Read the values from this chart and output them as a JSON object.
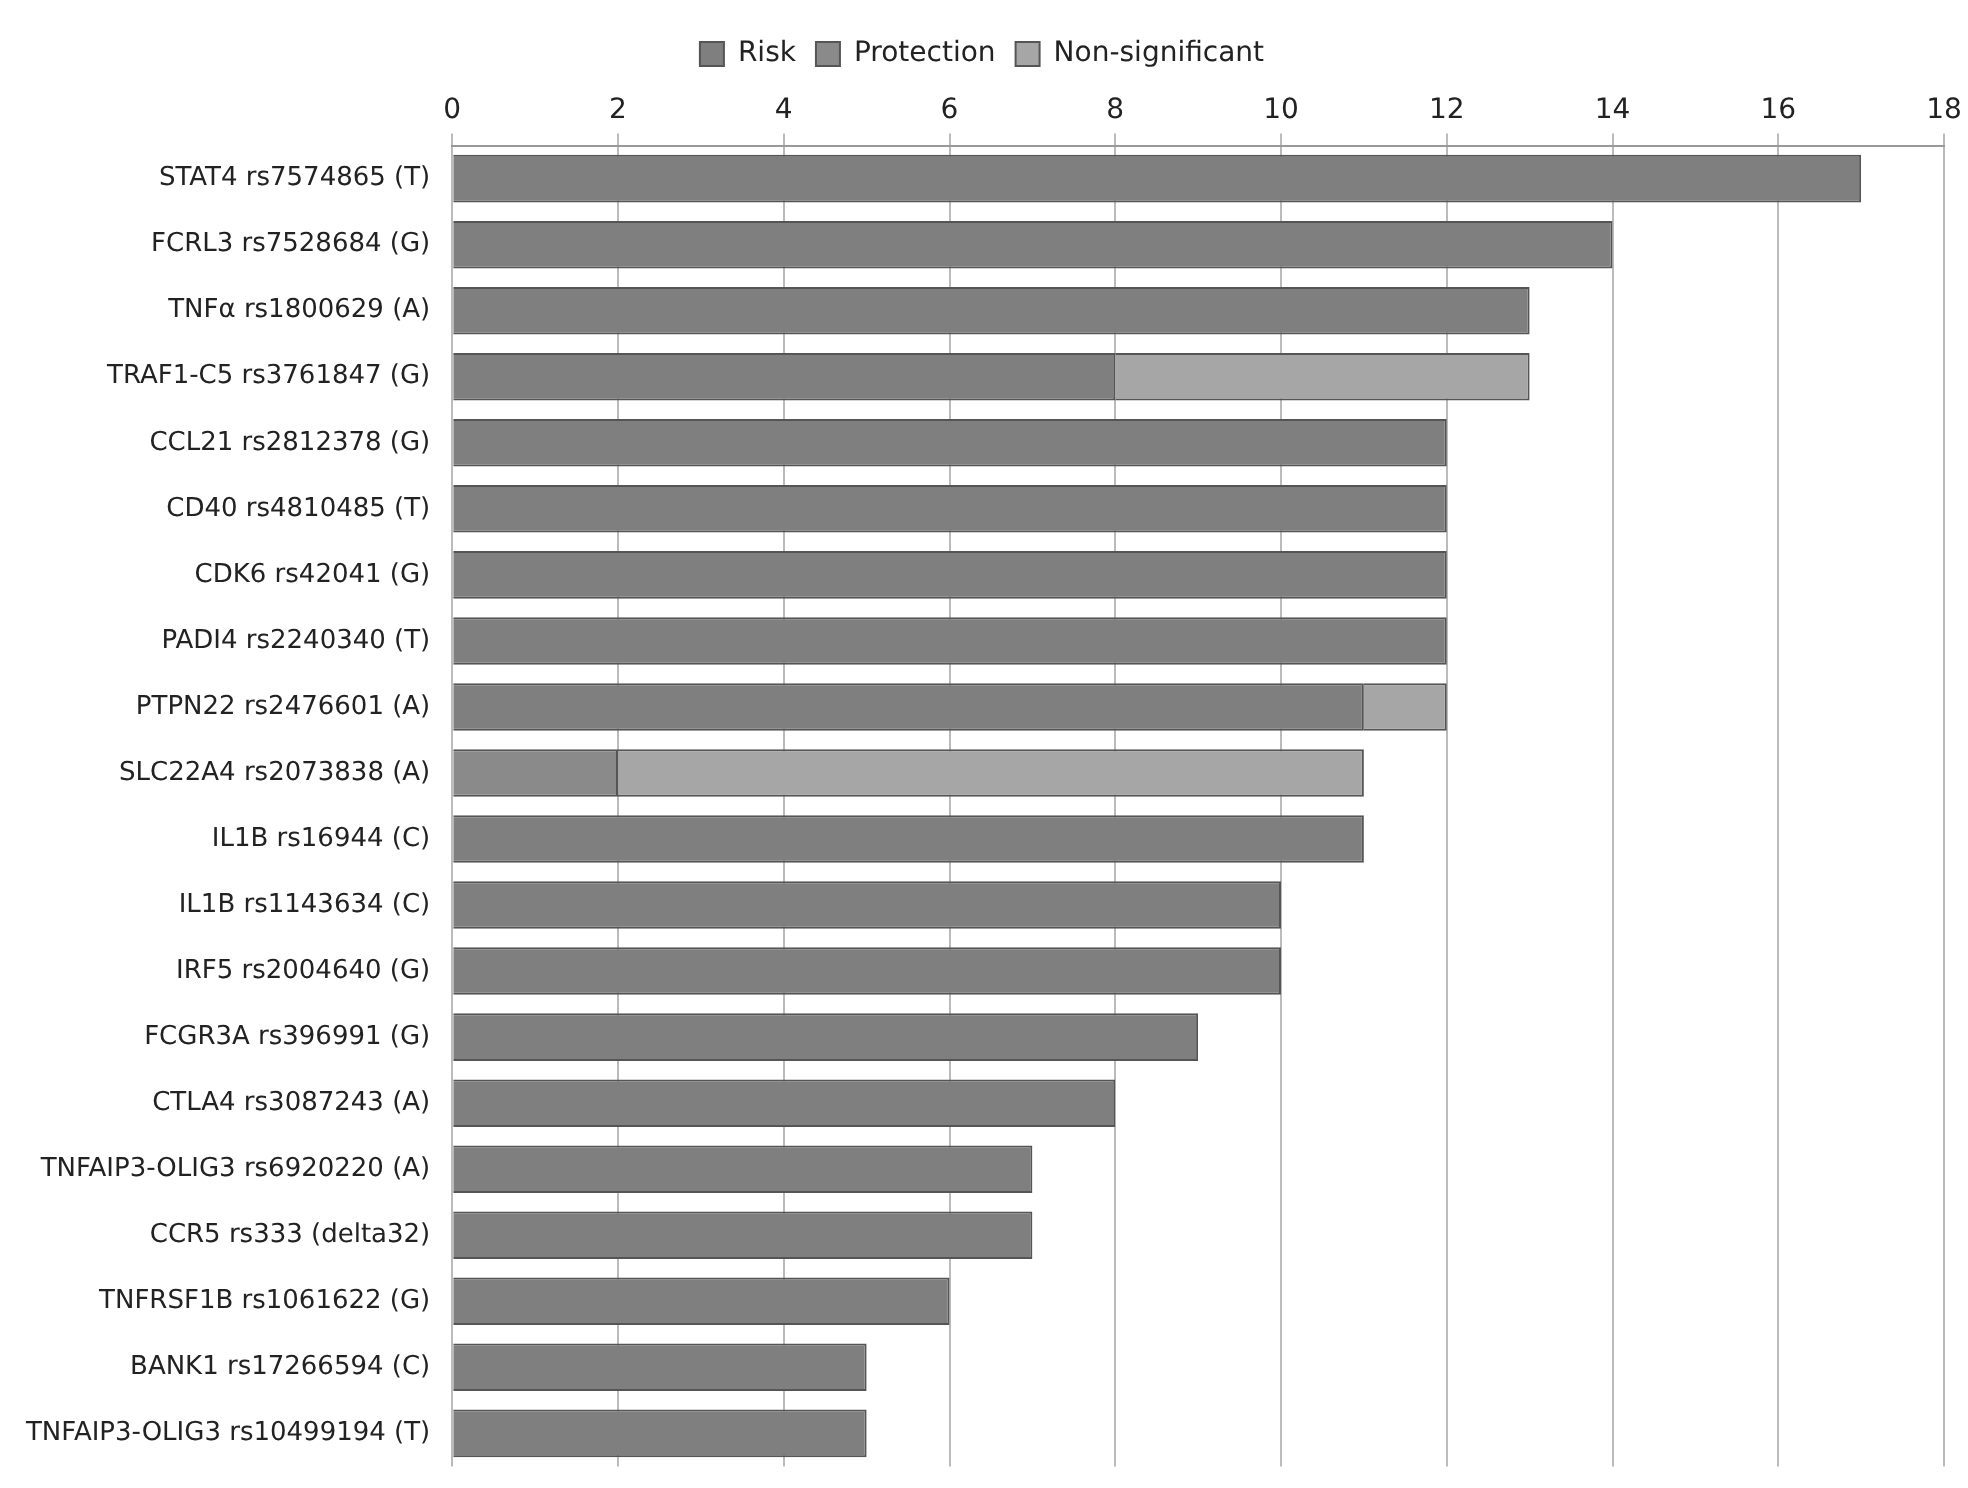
{
  "chart_data": {
    "type": "bar",
    "orientation": "horizontal",
    "stacked": true,
    "categories": [
      "STAT4 rs7574865 (T)",
      "FCRL3 rs7528684 (G)",
      "TNFα rs1800629 (A)",
      "TRAF1-C5 rs3761847 (G)",
      "CCL21 rs2812378 (G)",
      "CD40 rs4810485 (T)",
      "CDK6 rs42041 (G)",
      "PADI4 rs2240340 (T)",
      "PTPN22 rs2476601 (A)",
      "SLC22A4 rs2073838 (A)",
      "IL1B rs16944 (C)",
      "IL1B rs1143634 (C)",
      "IRF5 rs2004640 (G)",
      "FCGR3A rs396991 (G)",
      "CTLA4 rs3087243 (A)",
      "TNFAIP3-OLIG3 rs6920220 (A)",
      "CCR5 rs333 (delta32)",
      "TNFRSF1B rs1061622 (G)",
      "BANK1 rs17266594 (C)",
      "TNFAIP3-OLIG3 rs10499194 (T)"
    ],
    "series": [
      {
        "name": "Risk",
        "color": "#7f7f7f",
        "values": [
          17,
          14,
          13,
          8,
          12,
          12,
          12,
          12,
          11,
          null,
          11,
          10,
          10,
          9,
          8,
          7,
          7,
          6,
          5,
          5
        ]
      },
      {
        "name": "Protection",
        "color": "#8a8a8a",
        "values": [
          null,
          null,
          null,
          null,
          null,
          null,
          null,
          null,
          null,
          2,
          null,
          null,
          null,
          null,
          null,
          null,
          null,
          null,
          null,
          null
        ]
      },
      {
        "name": "Non-significant",
        "color": "#a6a6a6",
        "values": [
          null,
          null,
          null,
          5,
          null,
          null,
          null,
          null,
          1,
          9,
          null,
          null,
          null,
          null,
          null,
          null,
          null,
          null,
          null,
          null
        ]
      }
    ],
    "xlim": [
      0,
      18
    ],
    "xticks": [
      0,
      2,
      4,
      6,
      8,
      10,
      12,
      14,
      16,
      18
    ],
    "grid": "x",
    "legend": "top"
  }
}
